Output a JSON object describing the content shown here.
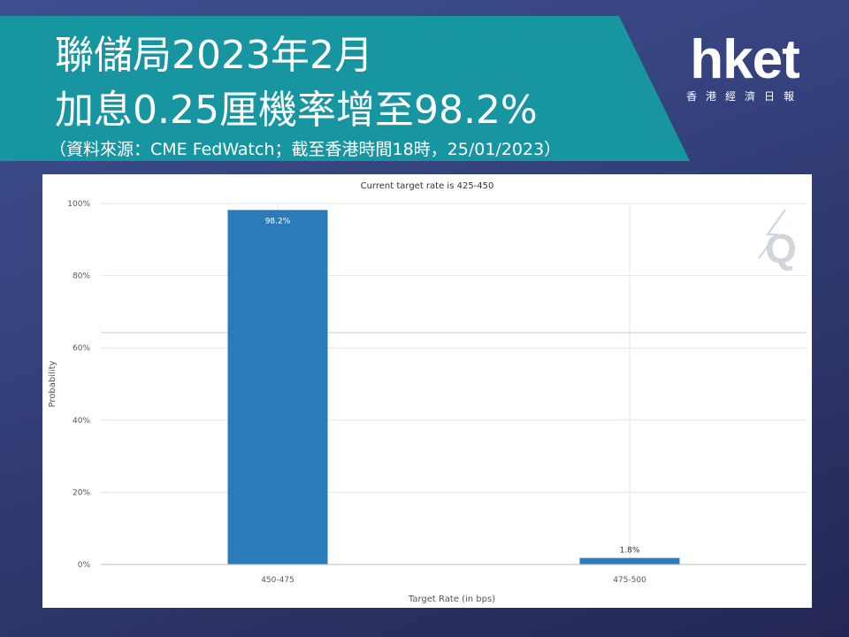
{
  "header": {
    "title_line1": "聯儲局2023年2月",
    "title_line2": "加息0.25厘機率增至98.2%",
    "source": "（資料來源：CME FedWatch；截至香港時間18時，25/01/2023）"
  },
  "logo": {
    "name": "hket",
    "tagline": "香港經濟日報"
  },
  "colors": {
    "banner": "#1796a1",
    "bar": "#2b7bba",
    "gridline": "#e6e6e6"
  },
  "chart_data": {
    "type": "bar",
    "title": "Current target rate is 425-450",
    "xlabel": "Target Rate (in bps)",
    "ylabel": "Probability",
    "categories": [
      "450-475",
      "475-500"
    ],
    "values": [
      98.2,
      1.8
    ],
    "data_labels": [
      "98.2%",
      "1.8%"
    ],
    "ylim": [
      0,
      100
    ],
    "yticks": [
      0,
      20,
      40,
      60,
      80,
      100
    ],
    "ytick_labels": [
      "0%",
      "20%",
      "40%",
      "60%",
      "80%",
      "100%"
    ],
    "grid": true,
    "watermark": "Q"
  }
}
